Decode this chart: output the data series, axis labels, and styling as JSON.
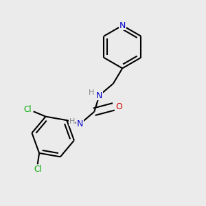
{
  "background_color": "#ebebeb",
  "atom_colors": {
    "C": "#000000",
    "N": "#0000cc",
    "O": "#cc0000",
    "Cl": "#00aa00",
    "H": "#888888"
  },
  "bond_color": "#000000",
  "bond_width": 1.5,
  "dbo": 0.018,
  "figsize": [
    3.0,
    3.0
  ],
  "dpi": 100
}
